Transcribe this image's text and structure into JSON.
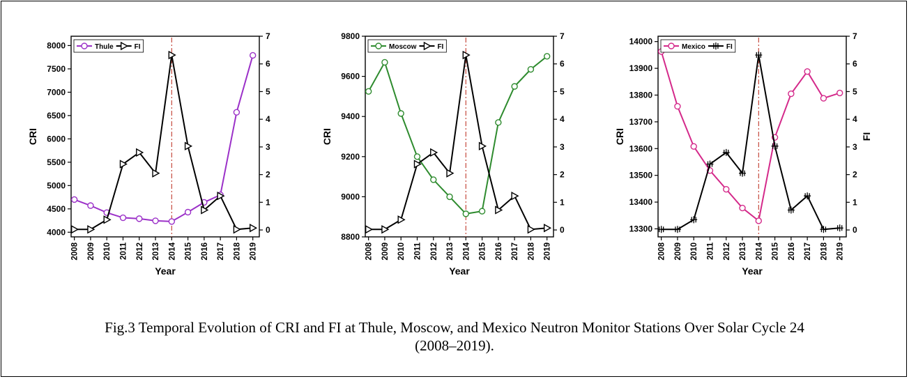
{
  "caption": {
    "line1": "Fig.3 Temporal Evolution of CRI and FI at Thule, Moscow, and Mexico Neutron Monitor Stations Over Solar Cycle 24",
    "line2": "(2008–2019)."
  },
  "chart_data": [
    {
      "type": "line",
      "xlabel": "Year",
      "ylabel": "CRI",
      "y2label": "",
      "categories": [
        "2008",
        "2009",
        "2010",
        "2011",
        "2012",
        "2013",
        "2014",
        "2015",
        "2016",
        "2017",
        "2018",
        "2019"
      ],
      "ylim": [
        3900,
        8200
      ],
      "yticks": [
        4000,
        4500,
        5000,
        5500,
        6000,
        6500,
        7000,
        7500,
        8000
      ],
      "y2lim": [
        -0.25,
        7
      ],
      "y2ticks": [
        0,
        1,
        2,
        3,
        4,
        5,
        6,
        7
      ],
      "marker_year": "2014",
      "legend_position": "top-left",
      "series": [
        {
          "name": "Thule",
          "axis": "left",
          "color": "#9b30c8",
          "marker": "circle",
          "values": [
            4700,
            4570,
            4420,
            4310,
            4290,
            4245,
            4230,
            4430,
            4640,
            4800,
            6570,
            7790
          ]
        },
        {
          "name": "FI",
          "axis": "right",
          "color": "#000000",
          "marker": "triangle",
          "values": [
            0.02,
            0.02,
            0.37,
            2.38,
            2.8,
            2.05,
            6.32,
            3.03,
            0.72,
            1.23,
            0.02,
            0.07
          ]
        }
      ]
    },
    {
      "type": "line",
      "xlabel": "Year",
      "ylabel": "CRI",
      "y2label": "",
      "categories": [
        "2008",
        "2009",
        "2010",
        "2011",
        "2012",
        "2013",
        "2014",
        "2015",
        "2016",
        "2017",
        "2018",
        "2019"
      ],
      "ylim": [
        8800,
        9800
      ],
      "yticks": [
        8800,
        9000,
        9200,
        9400,
        9600,
        9800
      ],
      "y2lim": [
        -0.25,
        7
      ],
      "y2ticks": [
        0,
        1,
        2,
        3,
        4,
        5,
        6,
        7
      ],
      "marker_year": "2014",
      "legend_position": "top-left",
      "series": [
        {
          "name": "Moscow",
          "axis": "left",
          "color": "#2e8b2e",
          "marker": "circle",
          "values": [
            9525,
            9670,
            9415,
            9200,
            9085,
            9000,
            8915,
            8928,
            9370,
            9550,
            9635,
            9700
          ]
        },
        {
          "name": "FI",
          "axis": "right",
          "color": "#000000",
          "marker": "triangle",
          "values": [
            0.02,
            0.02,
            0.37,
            2.38,
            2.8,
            2.05,
            6.32,
            3.03,
            0.72,
            1.23,
            0.02,
            0.07
          ]
        }
      ]
    },
    {
      "type": "line",
      "xlabel": "Year",
      "ylabel": "CRI",
      "y2label": "FI",
      "categories": [
        "2008",
        "2009",
        "2010",
        "2011",
        "2012",
        "2013",
        "2014",
        "2015",
        "2016",
        "2017",
        "2018",
        "2019"
      ],
      "ylim": [
        13270,
        14020
      ],
      "yticks": [
        13300,
        13400,
        13500,
        13600,
        13700,
        13800,
        13900,
        14000
      ],
      "y2lim": [
        -0.25,
        7
      ],
      "y2ticks": [
        0,
        1,
        2,
        3,
        4,
        5,
        6,
        7
      ],
      "marker_year": "2014",
      "legend_position": "top-left",
      "series": [
        {
          "name": "Mexico",
          "axis": "left",
          "color": "#d4298a",
          "marker": "circle",
          "values": [
            13963,
            13758,
            13608,
            13518,
            13448,
            13378,
            13330,
            13642,
            13805,
            13888,
            13788,
            13808
          ]
        },
        {
          "name": "FI",
          "axis": "right",
          "color": "#000000",
          "marker": "cross",
          "values": [
            0.02,
            0.02,
            0.37,
            2.38,
            2.8,
            2.05,
            6.32,
            3.03,
            0.72,
            1.23,
            0.02,
            0.07
          ]
        }
      ]
    }
  ]
}
